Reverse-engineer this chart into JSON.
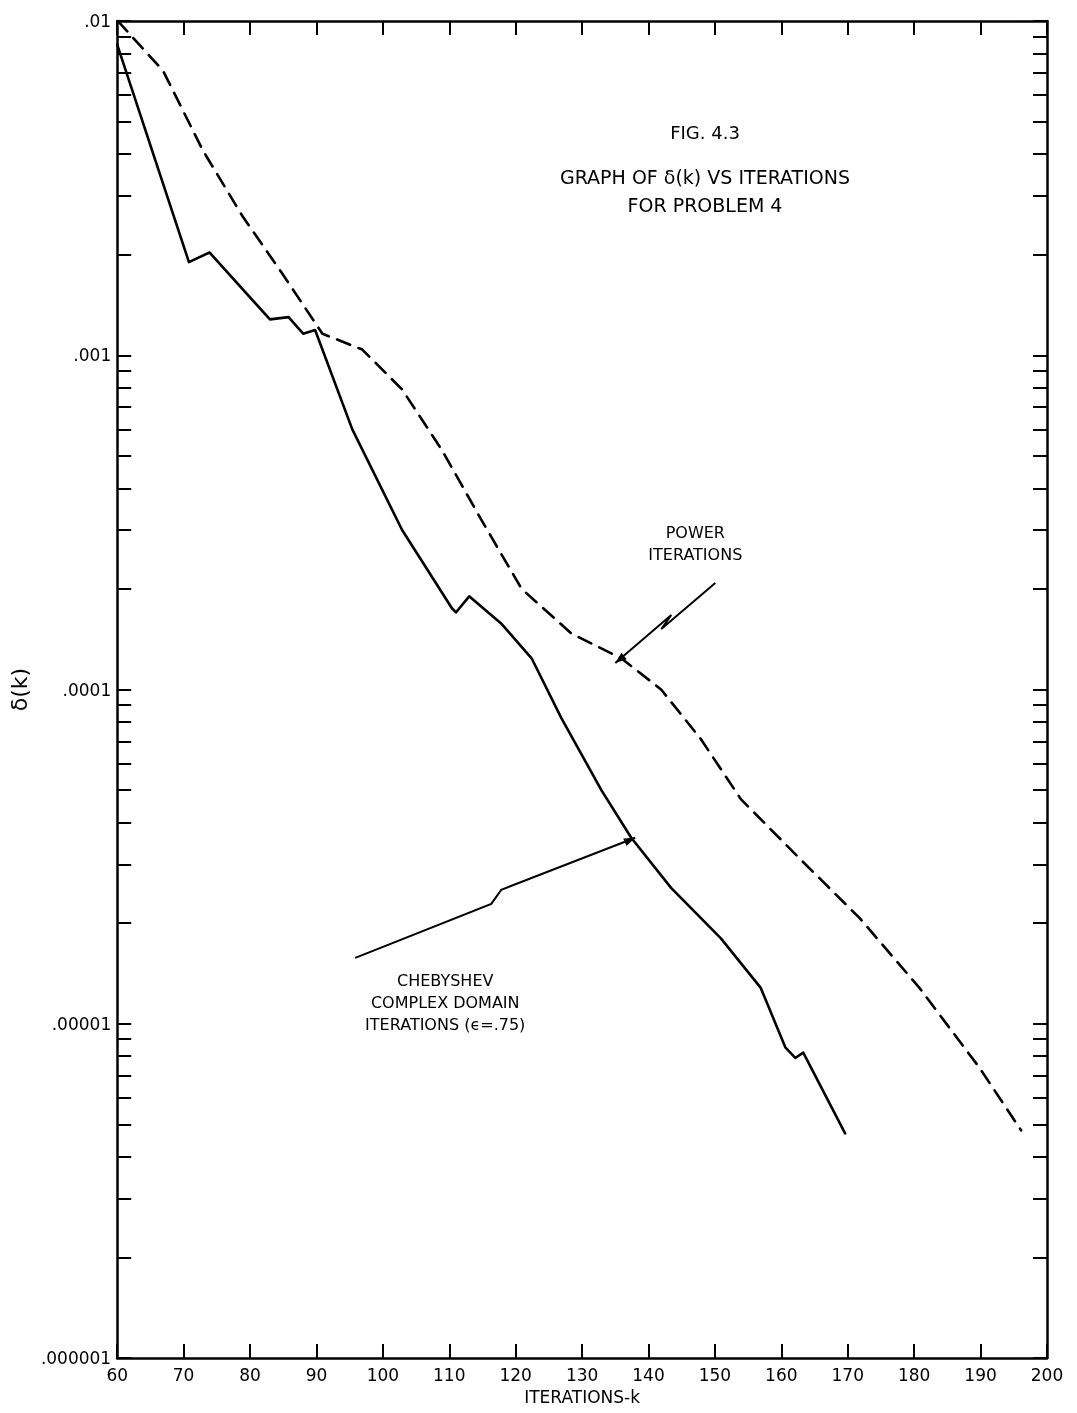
{
  "chart_data": {
    "type": "line",
    "title": "FIG. 4.3",
    "subtitle": "GRAPH OF δ(k) VS ITERATIONS\nFOR PROBLEM 4",
    "xlabel": "ITERATIONS-k",
    "ylabel": "δ(k)",
    "log": true,
    "grid": false,
    "marker": "none",
    "xlim": [
      60,
      200
    ],
    "xticks": [
      60,
      70,
      80,
      90,
      100,
      110,
      120,
      130,
      140,
      150,
      160,
      170,
      180,
      190,
      200
    ],
    "ylim": [
      1e-06,
      0.01
    ],
    "yticks": [
      {
        "value": 1e-06,
        "label": ".000001"
      },
      {
        "value": 2e-06,
        "label": null
      },
      {
        "value": 3e-06,
        "label": null
      },
      {
        "value": 4e-06,
        "label": null
      },
      {
        "value": 5e-06,
        "label": null
      },
      {
        "value": 6e-06,
        "label": null
      },
      {
        "value": 7e-06,
        "label": null
      },
      {
        "value": 8e-06,
        "label": null
      },
      {
        "value": 9e-06,
        "label": null
      },
      {
        "value": 1e-05,
        "label": ".00001"
      },
      {
        "value": 2e-05,
        "label": null
      },
      {
        "value": 3e-05,
        "label": null
      },
      {
        "value": 4e-05,
        "label": null
      },
      {
        "value": 5e-05,
        "label": null
      },
      {
        "value": 6e-05,
        "label": null
      },
      {
        "value": 7e-05,
        "label": null
      },
      {
        "value": 8e-05,
        "label": null
      },
      {
        "value": 9e-05,
        "label": null
      },
      {
        "value": 0.0001,
        "label": ".0001"
      },
      {
        "value": 0.0002,
        "label": null
      },
      {
        "value": 0.0003,
        "label": null
      },
      {
        "value": 0.0004,
        "label": null
      },
      {
        "value": 0.0005,
        "label": null
      },
      {
        "value": 0.0006,
        "label": null
      },
      {
        "value": 0.0007,
        "label": null
      },
      {
        "value": 0.0008,
        "label": null
      },
      {
        "value": 0.0009,
        "label": null
      },
      {
        "value": 0.001,
        "label": ".001"
      },
      {
        "value": 0.002,
        "label": null
      },
      {
        "value": 0.003,
        "label": null
      },
      {
        "value": 0.004,
        "label": null
      },
      {
        "value": 0.005,
        "label": null
      },
      {
        "value": 0.006,
        "label": null
      },
      {
        "value": 0.007,
        "label": null
      },
      {
        "value": 0.008,
        "label": null
      },
      {
        "value": 0.009,
        "label": null
      },
      {
        "value": 0.01,
        "label": ".01"
      }
    ],
    "series": [
      {
        "color": "#000000",
        "line_style": "solid",
        "x": [
          60,
          70.8,
          73.9,
          83,
          85.8,
          88,
          89.8,
          95.4,
          102.9,
          110.4,
          111,
          113,
          117.9,
          122.4,
          126.9,
          132.9,
          137.4,
          143.4,
          150.9,
          156.9,
          160.6,
          162.1,
          163.3,
          169.6
        ],
        "values": [
          0.0085,
          0.0019,
          0.00203,
          0.00128,
          0.0013,
          0.00116,
          0.00119,
          0.0006,
          0.0003,
          0.000175,
          0.00017,
          0.00019,
          0.000157,
          0.000124,
          8.2e-05,
          5e-05,
          3.6e-05,
          2.55e-05,
          1.8e-05,
          1.28e-05,
          8.5e-06,
          7.9e-06,
          8.2e-06,
          4.7e-06
        ]
      },
      {
        "color": "#000000",
        "line_style": "dashed",
        "x": [
          60.1,
          66.9,
          72.9,
          78.9,
          84.9,
          90.9,
          96.9,
          102.9,
          108.9,
          114.9,
          120.9,
          128.4,
          135.9,
          141.9,
          147.9,
          153.9,
          162.9,
          171.8,
          180.8,
          189.8,
          196.1
        ],
        "values": [
          0.01,
          0.0071,
          0.0041,
          0.0026,
          0.00175,
          0.00116,
          0.00104,
          0.00079,
          0.00052,
          0.00032,
          0.0002,
          0.000147,
          0.000124,
          0.0001,
          7.1e-05,
          4.7e-05,
          3.1e-05,
          2.07e-05,
          1.28e-05,
          7.4e-06,
          4.8e-06
        ]
      }
    ],
    "annotations": [
      {
        "text": "POWER\nITERATIONS",
        "x": 135,
        "y": 0.00012
      },
      {
        "text": "CHEBYSHEV\nCOMPLEX DOMAIN\nITERATIONS (ϵ=.75)",
        "x": 138,
        "y": 3.6e-05
      }
    ]
  }
}
